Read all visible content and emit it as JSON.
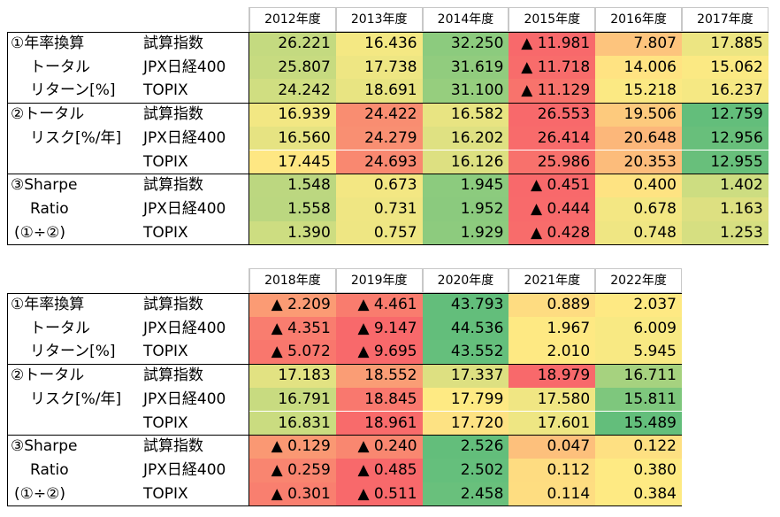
{
  "tables": [
    {
      "headers": [
        "2012年度",
        "2013年度",
        "2014年度",
        "2015年度",
        "2016年度",
        "2017年度"
      ],
      "rows": [
        [
          "①年率換算",
          "試算指数",
          "26.221",
          "16.436",
          "32.250",
          "▲ 11.981",
          "7.807",
          "17.885"
        ],
        [
          "トータル",
          "JPX日経400",
          "25.807",
          "17.738",
          "31.619",
          "▲ 11.718",
          "14.006",
          "15.062"
        ],
        [
          "リターン[%]",
          "TOPIX",
          "24.242",
          "18.691",
          "31.100",
          "▲ 11.129",
          "15.218",
          "16.237"
        ],
        [
          "②トータル",
          "試算指数",
          "16.939",
          "24.422",
          "16.582",
          "26.553",
          "19.506",
          "12.759"
        ],
        [
          "リスク[%/年]",
          "JPX日経400",
          "16.560",
          "24.279",
          "16.202",
          "26.414",
          "20.648",
          "12.956"
        ],
        [
          null,
          "TOPIX",
          "17.445",
          "24.693",
          "16.126",
          "25.986",
          "20.353",
          "12.955"
        ],
        [
          "③Sharpe",
          "試算指数",
          "1.548",
          "0.673",
          "1.945",
          "▲ 0.451",
          "0.400",
          "1.402"
        ],
        [
          "Ratio",
          "JPX日経400",
          "1.558",
          "0.731",
          "1.952",
          "▲ 0.444",
          "0.678",
          "1.163"
        ],
        [
          "(①÷②)",
          "TOPIX",
          "1.390",
          "0.757",
          "1.929",
          "▲ 0.428",
          "0.748",
          "1.253"
        ]
      ],
      "colors": [
        [
          "#c4da80",
          "#f4e883",
          "#8ccb7e",
          "#f8696b",
          "#fdc47d",
          "#ece582"
        ],
        [
          "#c7db80",
          "#eee683",
          "#91cc7e",
          "#f86c6b",
          "#ffe382",
          "#fbe983"
        ],
        [
          "#d0de81",
          "#e8e482",
          "#96ce7e",
          "#f8736c",
          "#fbe983",
          "#f5e883"
        ],
        [
          "#f2e783",
          "#f98d71",
          "#e8e482",
          "#f8696b",
          "#fdca7d",
          "#63be7b"
        ],
        [
          "#e6e382",
          "#f98f72",
          "#dfe182",
          "#f86b6b",
          "#fcb77a",
          "#68bf7b"
        ],
        [
          "#fee783",
          "#f98870",
          "#dde081",
          "#f8716c",
          "#fcbc7b",
          "#68bf7b"
        ],
        [
          "#bcd780",
          "#f3e783",
          "#8ccb7e",
          "#f8696b",
          "#fee382",
          "#cddd81"
        ],
        [
          "#bbd780",
          "#efe683",
          "#8bca7e",
          "#f86a6b",
          "#f3e783",
          "#dde081"
        ],
        [
          "#cddd81",
          "#eee683",
          "#8dcb7e",
          "#f86c6b",
          "#efe683",
          "#d6df81"
        ]
      ]
    },
    {
      "headers": [
        "2018年度",
        "2019年度",
        "2020年度",
        "2021年度",
        "2022年度"
      ],
      "rows": [
        [
          "①年率換算",
          "試算指数",
          "▲ 2.209",
          "▲ 4.461",
          "43.793",
          "0.889",
          "2.037"
        ],
        [
          "トータル",
          "JPX日経400",
          "▲ 4.351",
          "▲ 9.147",
          "44.536",
          "1.967",
          "6.009"
        ],
        [
          "リターン[%]",
          "TOPIX",
          "▲ 5.072",
          "▲ 9.695",
          "43.552",
          "2.010",
          "5.945"
        ],
        [
          "②トータル",
          "試算指数",
          "17.183",
          "18.552",
          "17.337",
          "18.979",
          "16.711"
        ],
        [
          "リスク[%/年]",
          "JPX日経400",
          "16.791",
          "18.845",
          "17.799",
          "17.580",
          "15.811"
        ],
        [
          null,
          "TOPIX",
          "16.831",
          "18.961",
          "17.720",
          "17.601",
          "15.489"
        ],
        [
          "③Sharpe",
          "試算指数",
          "▲ 0.129",
          "▲ 0.240",
          "2.526",
          "0.047",
          "0.122"
        ],
        [
          "Ratio",
          "JPX日経400",
          "▲ 0.259",
          "▲ 0.485",
          "2.502",
          "0.112",
          "0.380"
        ],
        [
          "(①÷②)",
          "TOPIX",
          "▲ 0.301",
          "▲ 0.511",
          "2.458",
          "0.114",
          "0.384"
        ]
      ],
      "colors": [
        [
          "#fb9b74",
          "#f97c6e",
          "#63be7b",
          "#fedc81",
          "#fee983"
        ],
        [
          "#f97d6f",
          "#f8696b",
          "#63be7b",
          "#fee983",
          "#f8e983"
        ],
        [
          "#f9776d",
          "#f8696b",
          "#65bf7c",
          "#fee983",
          "#f8e983"
        ],
        [
          "#e2e282",
          "#fa9d75",
          "#dde081",
          "#f8696b",
          "#a6d27f"
        ],
        [
          "#c8db80",
          "#f9786e",
          "#feea83",
          "#f0e683",
          "#7ec77d"
        ],
        [
          "#cadc80",
          "#f86b6b",
          "#fde283",
          "#eee683",
          "#63be7b"
        ],
        [
          "#fa9873",
          "#f98770",
          "#63be7b",
          "#fdc07c",
          "#fee082"
        ],
        [
          "#f98570",
          "#f8696b",
          "#65bf7c",
          "#fedc81",
          "#feea83"
        ],
        [
          "#f97f6f",
          "#f8696b",
          "#69c07c",
          "#fedd81",
          "#feea83"
        ]
      ]
    }
  ]
}
